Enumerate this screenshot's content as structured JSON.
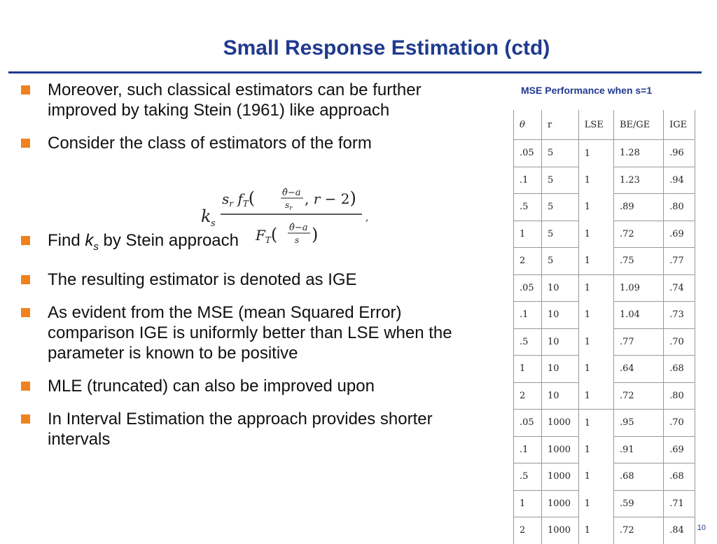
{
  "slide": {
    "title": "Small Response Estimation (ctd)",
    "page_number": "10"
  },
  "bullets": [
    "Moreover, such classical estimators can be further improved by taking Stein (1961) like approach",
    "Consider the class of estimators of the form",
    "Find",
    "The resulting estimator is denoted as IGE",
    "As evident from the MSE (mean Squared Error) comparison IGE is uniformly better than LSE when the parameter is known to be positive",
    "MLE (truncated) can also be improved upon",
    "In Interval Estimation the approach provides shorter intervals"
  ],
  "find_bullet": {
    "prefix": "Find",
    "var": "k",
    "subscript": "s",
    "suffix": "by Stein approach"
  },
  "table": {
    "caption": "MSE Performance when s=1",
    "headers": [
      "θ",
      "r",
      "LSE",
      "BE/GE",
      "IGE"
    ],
    "rows": [
      [
        ".05",
        "5",
        "1",
        "1.28",
        ".96"
      ],
      [
        ".1",
        "5",
        "1",
        "1.23",
        ".94"
      ],
      [
        ".5",
        "5",
        "1",
        ".89",
        ".80"
      ],
      [
        "1",
        "5",
        "1",
        ".72",
        ".69"
      ],
      [
        "2",
        "5",
        "1",
        ".75",
        ".77"
      ],
      [
        ".05",
        "10",
        "1",
        "1.09",
        ".74"
      ],
      [
        ".1",
        "10",
        "1",
        "1.04",
        ".73"
      ],
      [
        ".5",
        "10",
        "1",
        ".77",
        ".70"
      ],
      [
        "1",
        "10",
        "1",
        ".64",
        ".68"
      ],
      [
        "2",
        "10",
        "1",
        ".72",
        ".80"
      ],
      [
        ".05",
        "1000",
        "1",
        ".95",
        ".70"
      ],
      [
        ".1",
        "1000",
        "1",
        ".91",
        ".69"
      ],
      [
        ".5",
        "1000",
        "1",
        ".68",
        ".68"
      ],
      [
        "1",
        "1000",
        "1",
        ".59",
        ".71"
      ],
      [
        "2",
        "1000",
        "1",
        ".72",
        ".84"
      ]
    ]
  },
  "colors": {
    "title": "#1f3a8f",
    "bullet_marker": "#f0821e"
  }
}
